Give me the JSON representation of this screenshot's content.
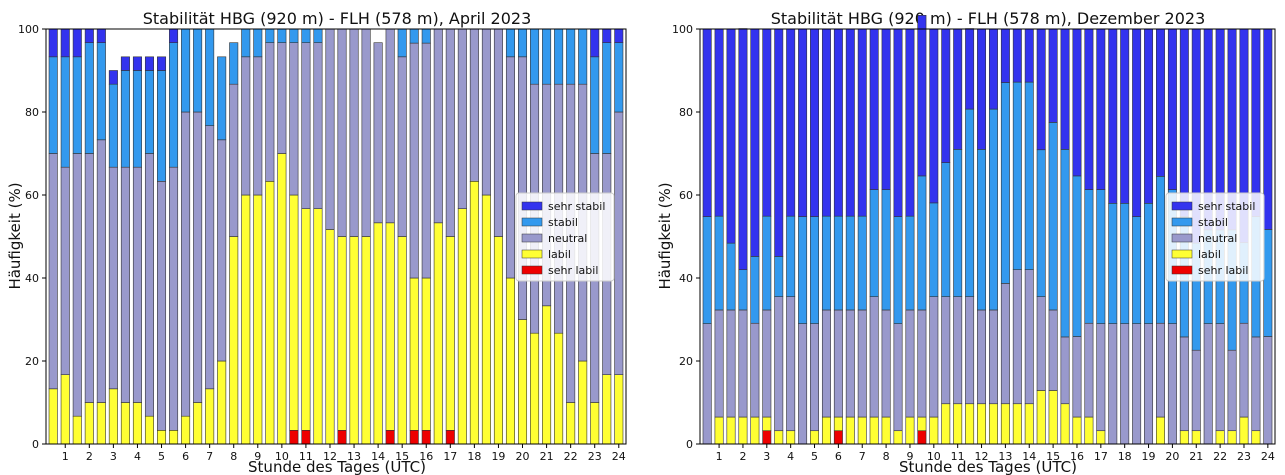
{
  "legend_labels": [
    "sehr stabil",
    "stabil",
    "neutral",
    "labil",
    "sehr labil"
  ],
  "colors": {
    "sehr_stabil": "#3333ee",
    "stabil": "#3399ee",
    "neutral": "#9999cc",
    "labil": "#ffff33",
    "sehr_labil": "#ee0000"
  },
  "chart_data": [
    {
      "type": "bar",
      "stacked": true,
      "title": "Stabilität HBG (920 m) - FLH (578 m), April 2023",
      "xlabel": "Stunde des Tages (UTC)",
      "ylabel": "Häufigkeit (%)",
      "ylim": [
        0,
        100
      ],
      "yticks": [
        0,
        20,
        40,
        60,
        80,
        100
      ],
      "xticks": [
        1,
        2,
        3,
        4,
        5,
        6,
        7,
        8,
        9,
        10,
        11,
        12,
        13,
        14,
        15,
        16,
        17,
        18,
        19,
        20,
        21,
        22,
        23,
        24
      ],
      "x": [
        0.5,
        1,
        1.5,
        2,
        2.5,
        3,
        3.5,
        4,
        4.5,
        5,
        5.5,
        6,
        6.5,
        7,
        7.5,
        8,
        8.5,
        9,
        9.5,
        10,
        10.5,
        11,
        11.5,
        12,
        12.5,
        13,
        13.5,
        14,
        14.5,
        15,
        15.5,
        16,
        16.5,
        17,
        17.5,
        18,
        18.5,
        19,
        19.5,
        20,
        20.5,
        21,
        21.5,
        22,
        22.5,
        23,
        23.5,
        24
      ],
      "legend_position": "center-right",
      "series": [
        {
          "name": "sehr labil",
          "values": [
            0,
            0,
            0,
            0,
            0,
            0,
            0,
            0,
            0,
            0,
            0,
            0,
            0,
            0,
            0,
            0,
            0,
            0,
            0,
            0,
            3.3,
            3.3,
            0,
            0,
            3.3,
            0,
            0,
            0,
            3.3,
            0,
            3.3,
            3.3,
            0,
            3.3,
            0,
            0,
            0,
            0,
            0,
            0,
            0,
            0,
            0,
            0,
            0,
            0,
            0,
            0
          ]
        },
        {
          "name": "labil",
          "values": [
            13.3,
            16.7,
            6.7,
            10,
            10,
            13.3,
            10,
            10,
            6.7,
            3.3,
            3.3,
            6.7,
            10,
            13.3,
            20,
            50,
            60,
            60,
            63.3,
            70,
            56.7,
            53.4,
            56.7,
            51.7,
            46.7,
            50,
            50,
            53.3,
            50,
            50,
            36.7,
            36.7,
            53.3,
            46.7,
            56.7,
            63.3,
            60,
            50,
            40,
            30,
            26.7,
            33.3,
            26.7,
            10,
            20,
            10,
            16.7,
            16.7
          ]
        },
        {
          "name": "neutral",
          "values": [
            56.7,
            50,
            63.3,
            60,
            63.3,
            53.4,
            56.7,
            56.7,
            63.3,
            60,
            63.4,
            73.3,
            70,
            63.4,
            53.3,
            36.7,
            33.3,
            33.3,
            33.4,
            26.7,
            36.7,
            40,
            40,
            48.3,
            50,
            50,
            50,
            43.4,
            46.7,
            43.3,
            56.6,
            56.6,
            46.7,
            50,
            43.3,
            36.7,
            40,
            50,
            53.3,
            63.3,
            60,
            53.4,
            60,
            76.7,
            66.7,
            60,
            53.3,
            63.3
          ]
        },
        {
          "name": "stabil",
          "values": [
            23.3,
            26.6,
            23.3,
            26.7,
            23.4,
            20,
            23.3,
            23.3,
            20,
            26.7,
            30,
            20,
            20,
            23.3,
            20,
            10,
            6.7,
            6.7,
            3.3,
            3.3,
            3.3,
            3.3,
            3.3,
            0,
            0,
            0,
            0,
            0,
            0,
            6.7,
            3.4,
            3.4,
            0,
            0,
            0,
            0,
            0,
            0,
            6.7,
            6.7,
            13.3,
            13.3,
            13.3,
            13.3,
            13.3,
            23.3,
            26.7,
            16.7
          ]
        },
        {
          "name": "sehr stabil",
          "values": [
            6.7,
            6.7,
            6.7,
            3.3,
            3.3,
            3.3,
            3.3,
            3.3,
            3.3,
            3.3,
            3.3,
            0,
            0,
            0,
            0,
            0,
            0,
            0,
            0,
            0,
            0,
            0,
            0,
            0,
            0,
            0,
            0,
            0,
            0,
            0,
            0,
            0,
            0,
            0,
            0,
            0,
            0,
            0,
            0,
            0,
            0,
            0,
            0,
            0,
            0,
            6.7,
            3.3,
            3.3
          ]
        }
      ]
    },
    {
      "type": "bar",
      "stacked": true,
      "title": "Stabilität HBG (920 m) - FLH (578 m), Dezember 2023",
      "xlabel": "Stunde des Tages (UTC)",
      "ylabel": "Häufigkeit (%)",
      "ylim": [
        0,
        100
      ],
      "yticks": [
        0,
        20,
        40,
        60,
        80,
        100
      ],
      "xticks": [
        1,
        2,
        3,
        4,
        5,
        6,
        7,
        8,
        9,
        10,
        11,
        12,
        13,
        14,
        15,
        16,
        17,
        18,
        19,
        20,
        21,
        22,
        23,
        24
      ],
      "x": [
        0.5,
        1,
        1.5,
        2,
        2.5,
        3,
        3.5,
        4,
        4.5,
        5,
        5.5,
        6,
        6.5,
        7,
        7.5,
        8,
        8.5,
        9,
        9.5,
        10,
        10.5,
        11,
        11.5,
        12,
        12.5,
        13,
        13.5,
        14,
        14.5,
        15,
        15.5,
        16,
        16.5,
        17,
        17.5,
        18,
        18.5,
        19,
        19.5,
        20,
        20.5,
        21,
        21.5,
        22,
        22.5,
        23,
        23.5,
        24
      ],
      "legend_position": "center-right",
      "series": [
        {
          "name": "sehr labil",
          "values": [
            0,
            0,
            0,
            0,
            0,
            3.2,
            0,
            0,
            0,
            0,
            0,
            3.2,
            0,
            0,
            0,
            0,
            0,
            0,
            3.2,
            0,
            0,
            0,
            0,
            0,
            0,
            0,
            0,
            0,
            0,
            0,
            0,
            0,
            0,
            0,
            0,
            0,
            0,
            0,
            0,
            0,
            0,
            0,
            0,
            0,
            0,
            0,
            0,
            0
          ]
        },
        {
          "name": "labil",
          "values": [
            0,
            6.5,
            6.5,
            6.5,
            6.5,
            3.3,
            3.2,
            3.2,
            0,
            3.2,
            6.5,
            3.3,
            6.5,
            6.5,
            6.5,
            6.5,
            3.2,
            6.5,
            3.3,
            6.5,
            9.7,
            9.7,
            9.7,
            9.7,
            9.7,
            9.7,
            9.7,
            9.7,
            12.9,
            12.9,
            9.7,
            6.5,
            6.5,
            3.2,
            0,
            0,
            0,
            0,
            6.5,
            0,
            3.2,
            3.2,
            0,
            3.2,
            3.2,
            6.5,
            3.2,
            0
          ]
        },
        {
          "name": "neutral",
          "values": [
            29,
            25.8,
            25.8,
            25.8,
            22.6,
            25.8,
            32.3,
            32.3,
            29,
            25.8,
            25.8,
            25.8,
            25.8,
            25.8,
            29,
            25.8,
            25.8,
            25.8,
            25.8,
            29,
            25.8,
            25.8,
            25.8,
            22.6,
            22.6,
            29,
            32.3,
            32.3,
            22.6,
            19.4,
            16.1,
            19.4,
            22.6,
            25.8,
            29,
            29,
            29,
            29,
            22.6,
            29,
            22.6,
            19.4,
            29,
            25.8,
            19.4,
            22.6,
            22.6,
            25.9
          ]
        },
        {
          "name": "stabil",
          "values": [
            25.8,
            22.6,
            16.1,
            9.7,
            16.1,
            22.6,
            9.7,
            19.4,
            25.8,
            25.8,
            22.6,
            22.6,
            22.6,
            22.6,
            25.8,
            29,
            25.8,
            22.6,
            32.3,
            22.6,
            32.3,
            35.5,
            45.2,
            38.7,
            48.4,
            48.4,
            45.2,
            45.2,
            35.4,
            45.2,
            45.2,
            38.7,
            32.2,
            32.3,
            29,
            29,
            25.8,
            29,
            35.4,
            32.3,
            29,
            25.8,
            22.6,
            22.6,
            29,
            19.4,
            29,
            25.8
          ]
        },
        {
          "name": "sehr stabil",
          "values": [
            45.2,
            45.1,
            51.6,
            58.1,
            54.8,
            45.1,
            54.8,
            45.1,
            45.2,
            45.2,
            45.1,
            45.1,
            45.1,
            45.1,
            38.7,
            38.7,
            45.2,
            45.1,
            38.7,
            41.9,
            32.2,
            29,
            19.4,
            29,
            19.3,
            12.9,
            12.8,
            12.8,
            29.1,
            22.5,
            29,
            35.4,
            38.7,
            38.7,
            42,
            42,
            45.2,
            42,
            35.5,
            38.7,
            45.2,
            51.6,
            48.4,
            48.4,
            48.4,
            51.5,
            45.2,
            48.3
          ]
        }
      ]
    }
  ]
}
